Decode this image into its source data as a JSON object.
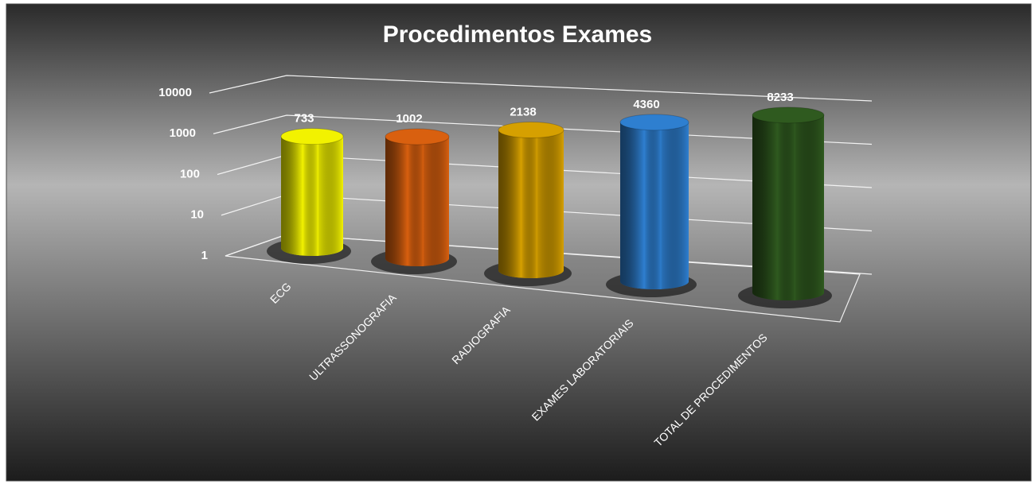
{
  "chart_data": {
    "type": "bar",
    "title": "Procedimentos Exames",
    "categories": [
      "ECG",
      "ULTRASSONOGRAFIA",
      "RADIOGRAFIA",
      "EXAMES LABORATORIAIS",
      "TOTAL DE PROCEDIMENTOS"
    ],
    "values": [
      733,
      1002,
      2138,
      4360,
      8233
    ],
    "colors": [
      "#f2f200",
      "#d9600f",
      "#d6a000",
      "#2e7fd0",
      "#2f5a1f"
    ],
    "ylim": [
      1,
      10000
    ],
    "yticks": [
      1,
      10,
      100,
      1000,
      10000
    ],
    "log_scale": true,
    "grid": true
  }
}
